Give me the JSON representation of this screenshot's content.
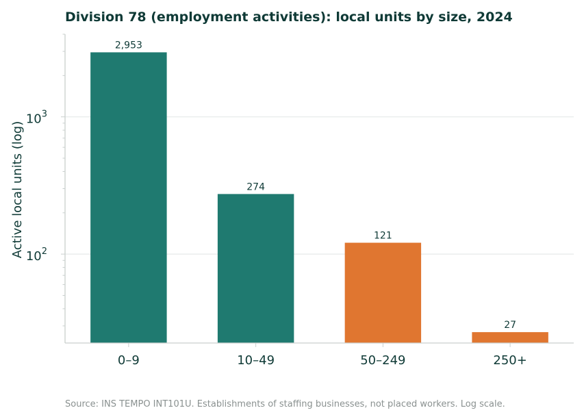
{
  "chart_data": {
    "type": "bar",
    "title": "Division 78 (employment activities): local units by size, 2024",
    "ylabel": "Active local units (log)",
    "xlabel": "",
    "yscale": "log",
    "ylim": [
      22.5,
      4000
    ],
    "y_ticks": [
      {
        "value": 100,
        "base": "10",
        "exp": "2"
      },
      {
        "value": 1000,
        "base": "10",
        "exp": "3"
      }
    ],
    "grid": "horizontal",
    "categories": [
      "0–9",
      "10–49",
      "50–249",
      "250+"
    ],
    "values": [
      2953,
      274,
      121,
      27
    ],
    "value_labels": [
      "2,953",
      "274",
      "121",
      "27"
    ],
    "bar_colors": [
      "#1f7a70",
      "#1f7a70",
      "#e07630",
      "#e07630"
    ],
    "source": "Source: INS TEMPO INT101U. Establishments of staffing businesses, not placed workers. Log scale."
  },
  "colors": {
    "teal": "#1f7a70",
    "orange": "#e07630",
    "title": "#0f3a36",
    "grid": "#e6e9e8",
    "axis": "#c9cfcd",
    "source": "#8a9190"
  }
}
